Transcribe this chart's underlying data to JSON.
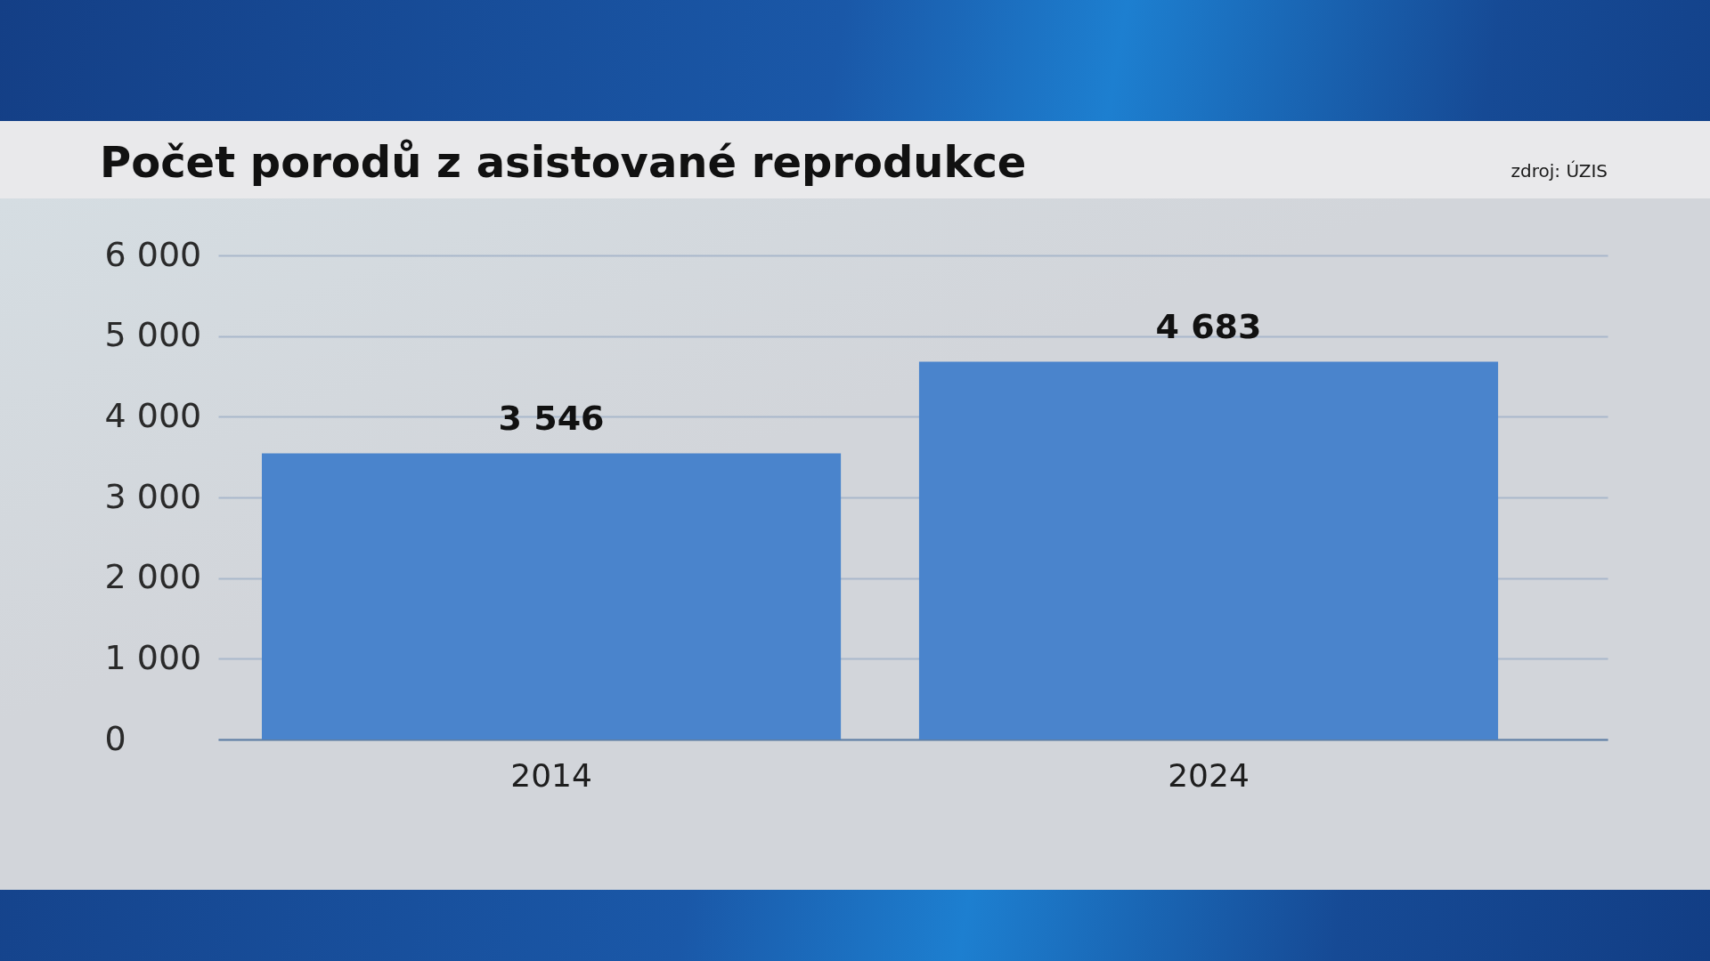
{
  "chart_data": {
    "type": "bar",
    "title": "Počet porodů z asistované reprodukce",
    "annotations": [
      "zdroj: ÚZIS"
    ],
    "categories": [
      "2014",
      "2024"
    ],
    "values": [
      3546,
      4683
    ],
    "value_labels": [
      "3 546",
      "4 683"
    ],
    "color": "#4a84cc",
    "ylim": [
      0,
      6000
    ],
    "yticks": [
      {
        "value": 0,
        "label": "0"
      },
      {
        "value": 1000,
        "label": "1 000"
      },
      {
        "value": 2000,
        "label": "2 000"
      },
      {
        "value": 3000,
        "label": "3 000"
      },
      {
        "value": 4000,
        "label": "4 000"
      },
      {
        "value": 5000,
        "label": "5 000"
      },
      {
        "value": 6000,
        "label": "6 000"
      }
    ],
    "grid": "y"
  }
}
